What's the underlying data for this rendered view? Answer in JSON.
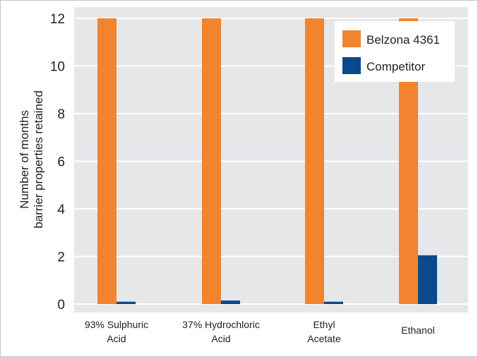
{
  "chart_data": {
    "type": "bar",
    "title": "",
    "xlabel": "",
    "ylabel_lines": [
      "Number of months",
      "barrier properties retained"
    ],
    "categories": [
      [
        "93% Sulphuric",
        "Acid"
      ],
      [
        "37% Hydrochloric",
        "Acid"
      ],
      [
        "Ethyl",
        "Acetate"
      ],
      [
        "Ethanol"
      ]
    ],
    "series": [
      {
        "name": "Belzona 4361",
        "color": "#f28430",
        "values": [
          12,
          12,
          12,
          12
        ]
      },
      {
        "name": "Competitor",
        "color": "#0a4a8c",
        "values": [
          0.1,
          0.15,
          0.1,
          2.05
        ]
      }
    ],
    "ylim": [
      0,
      12
    ],
    "yticks": [
      0,
      2,
      4,
      6,
      8,
      10,
      12
    ],
    "grid": true,
    "legend_position": "top-right",
    "plot_background": "#e6e7e9",
    "grid_color": "#ffffff"
  }
}
